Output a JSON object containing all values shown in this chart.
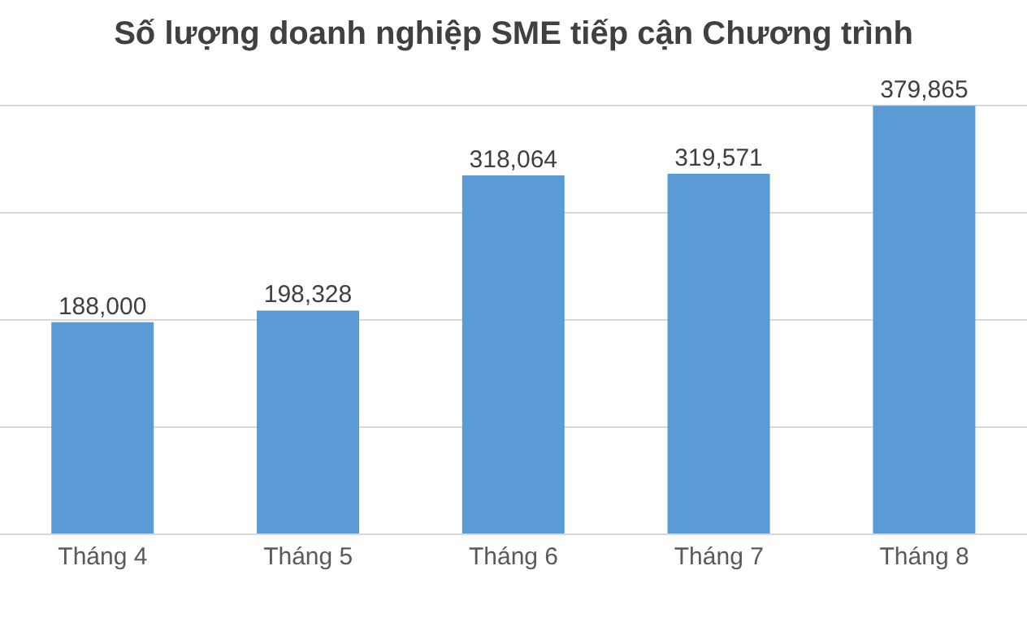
{
  "chart_data": {
    "type": "bar",
    "title": "Số lượng doanh nghiệp SME tiếp cận Chương trình",
    "categories": [
      "Tháng 4",
      "Tháng 5",
      "Tháng 6",
      "Tháng 7",
      "Tháng 8"
    ],
    "values": [
      188000,
      198328,
      318064,
      319571,
      379865
    ],
    "color": "#5b9bd5",
    "value_labels": [
      "188,000",
      "198,328",
      "318,064",
      "319,571",
      "379,865"
    ],
    "tick_labels": "x",
    "grid": "y"
  }
}
